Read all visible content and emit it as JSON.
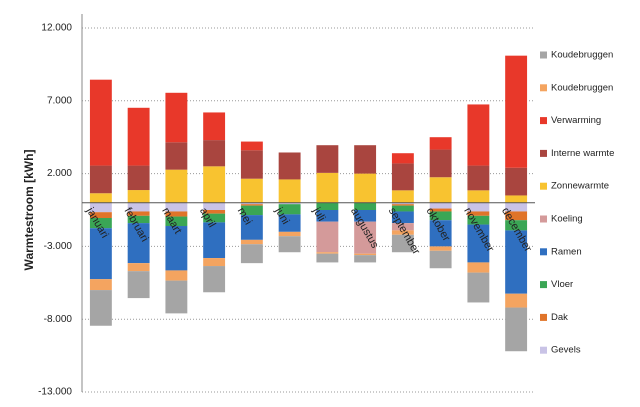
{
  "chart_data": {
    "type": "stacked-bar",
    "y_label": "Warmtestroom [kWh]",
    "categories": [
      "januari",
      "februari",
      "maart",
      "april",
      "mei",
      "juni",
      "juli",
      "augustus",
      "september",
      "oktober",
      "november",
      "december"
    ],
    "series": [
      {
        "name": "Koudebruggen",
        "color": "#a5a5a5",
        "values": [
          -2450,
          -1850,
          -2250,
          -1800,
          -1300,
          -1100,
          -600,
          -500,
          -1200,
          -1200,
          -2050,
          -3000
        ]
      },
      {
        "name": "Koudebruggen",
        "color": "#f4a460",
        "values": [
          -750,
          -550,
          -700,
          -550,
          -300,
          -300,
          -100,
          -100,
          -300,
          -300,
          -700,
          -950
        ]
      },
      {
        "name": "Verwarming",
        "color": "#e8382a",
        "values": [
          5900,
          3970,
          3400,
          1900,
          600,
          0,
          0,
          0,
          700,
          850,
          4200,
          7700
        ]
      },
      {
        "name": "Interne warmte",
        "color": "#a9453f",
        "values": [
          1900,
          1680,
          1880,
          1800,
          1950,
          1850,
          1900,
          1950,
          1850,
          1900,
          1700,
          1900
        ]
      },
      {
        "name": "Zonnewarmte",
        "color": "#f8c330",
        "values": [
          650,
          870,
          2270,
          2500,
          1650,
          1600,
          2050,
          2000,
          850,
          1750,
          850,
          500
        ]
      },
      {
        "name": "Koeling",
        "color": "#d49a9a",
        "values": [
          0,
          0,
          0,
          0,
          0,
          0,
          -2100,
          -2200,
          -500,
          0,
          0,
          0
        ]
      },
      {
        "name": "Ramen",
        "color": "#2f6fc0",
        "values": [
          -3500,
          -2750,
          -3050,
          -2450,
          -1700,
          -1200,
          -800,
          -800,
          -800,
          -1800,
          -2600,
          -4350
        ]
      },
      {
        "name": "Vloer",
        "color": "#3aa655",
        "values": [
          -700,
          -500,
          -650,
          -600,
          -650,
          -700,
          -500,
          -500,
          -400,
          -600,
          -600,
          -700
        ]
      },
      {
        "name": "Dak",
        "color": "#e0742a",
        "values": [
          -400,
          -300,
          -350,
          -250,
          -100,
          0,
          0,
          0,
          -100,
          -200,
          -300,
          -600
        ]
      },
      {
        "name": "Gevels",
        "color": "#c9c3e6",
        "values": [
          -650,
          -600,
          -600,
          -500,
          -100,
          -100,
          0,
          0,
          -100,
          -400,
          -600,
          -600
        ]
      }
    ],
    "ylim": [
      -13000,
      12000
    ],
    "yticks": [
      {
        "value": -13000,
        "label": "-13.000"
      },
      {
        "value": -8000,
        "label": "-8.000"
      },
      {
        "value": -3000,
        "label": "-3.000"
      },
      {
        "value": 2000,
        "label": "2.000"
      },
      {
        "value": 7000,
        "label": "7.000"
      },
      {
        "value": 12000,
        "label": "12.000"
      }
    ],
    "grid": true,
    "legend": "right"
  }
}
